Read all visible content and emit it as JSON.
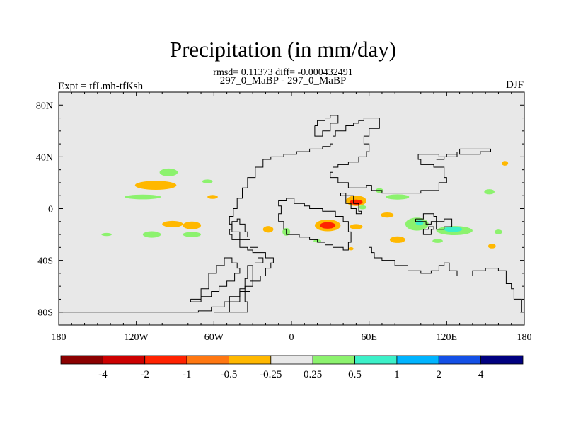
{
  "chart_data": {
    "type": "contour-map",
    "title": "Precipitation (in mm/day)",
    "subtitle": "rmsd= 0.11373 diff= -0.000432491",
    "left_label": "Expt = tfLmh-tfKsh",
    "center_label": "297_0_MaBP - 297_0_MaBP",
    "season": "DJF",
    "lon_range": [
      -180,
      180
    ],
    "lat_range": [
      -90,
      90
    ],
    "x_ticks": [
      {
        "value": -180,
        "label": "180"
      },
      {
        "value": -120,
        "label": "120W"
      },
      {
        "value": -60,
        "label": "60W"
      },
      {
        "value": 0,
        "label": "0"
      },
      {
        "value": 60,
        "label": "60E"
      },
      {
        "value": 120,
        "label": "120E"
      },
      {
        "value": 180,
        "label": "180"
      }
    ],
    "y_ticks": [
      {
        "value": 80,
        "label": "80N"
      },
      {
        "value": 40,
        "label": "40N"
      },
      {
        "value": 0,
        "label": "0"
      },
      {
        "value": -40,
        "label": "40S"
      },
      {
        "value": -80,
        "label": "80S"
      }
    ],
    "background_color": "#e8e8e8",
    "colorbar": {
      "colors": [
        "#8b0000",
        "#cc0000",
        "#ff2200",
        "#ff7711",
        "#ffb800",
        "#e8e8e8",
        "#8cf26e",
        "#3cf0c8",
        "#00b4ff",
        "#1450e6",
        "#000080"
      ],
      "labels": [
        "-4",
        "-2",
        "-1",
        "-0.5",
        "-0.25",
        "0.25",
        "0.5",
        "1",
        "2",
        "4"
      ]
    },
    "anomaly_regions": [
      {
        "lon": -105,
        "lat": 18,
        "w": 16,
        "h": 3.5,
        "color": "#ffb800"
      },
      {
        "lon": -95,
        "lat": 28,
        "w": 7,
        "h": 3,
        "color": "#8cf26e"
      },
      {
        "lon": -115,
        "lat": 9,
        "w": 14,
        "h": 1.8,
        "color": "#8cf26e"
      },
      {
        "lon": -65,
        "lat": 21,
        "w": 4,
        "h": 1.5,
        "color": "#8cf26e"
      },
      {
        "lon": -61,
        "lat": 9,
        "w": 4,
        "h": 1.5,
        "color": "#ffb800"
      },
      {
        "lon": -108,
        "lat": -20,
        "w": 7,
        "h": 2.5,
        "color": "#8cf26e"
      },
      {
        "lon": -92,
        "lat": -12,
        "w": 8,
        "h": 2.5,
        "color": "#ffb800"
      },
      {
        "lon": -77,
        "lat": -13,
        "w": 7,
        "h": 3,
        "color": "#ffb800"
      },
      {
        "lon": -77,
        "lat": -20,
        "w": 7,
        "h": 2,
        "color": "#8cf26e"
      },
      {
        "lon": -143,
        "lat": -20,
        "w": 4,
        "h": 1.2,
        "color": "#8cf26e"
      },
      {
        "lon": -18,
        "lat": -16,
        "w": 4,
        "h": 2.5,
        "color": "#ffb800"
      },
      {
        "lon": -4,
        "lat": -18,
        "w": 3,
        "h": 3,
        "color": "#8cf26e"
      },
      {
        "lon": 28,
        "lat": -13,
        "w": 10,
        "h": 4.5,
        "color": "#ffb800"
      },
      {
        "lon": 28,
        "lat": -13,
        "w": 6,
        "h": 2.5,
        "color": "#ff2200"
      },
      {
        "lon": 50,
        "lat": 6,
        "w": 8,
        "h": 4,
        "color": "#ffb800"
      },
      {
        "lon": 50,
        "lat": 5,
        "w": 5,
        "h": 2,
        "color": "#ff2200"
      },
      {
        "lon": 50,
        "lat": -14,
        "w": 5,
        "h": 2,
        "color": "#ffb800"
      },
      {
        "lon": 55,
        "lat": 1,
        "w": 3,
        "h": 1.5,
        "color": "#8cf26e"
      },
      {
        "lon": 74,
        "lat": -5,
        "w": 5,
        "h": 2,
        "color": "#ffb800"
      },
      {
        "lon": 82,
        "lat": 9,
        "w": 9,
        "h": 2,
        "color": "#8cf26e"
      },
      {
        "lon": 97,
        "lat": -12,
        "w": 9,
        "h": 5,
        "color": "#8cf26e"
      },
      {
        "lon": 99,
        "lat": -11,
        "w": 3,
        "h": 2,
        "color": "#3cf0c8"
      },
      {
        "lon": 126,
        "lat": -17,
        "w": 14,
        "h": 3.5,
        "color": "#8cf26e"
      },
      {
        "lon": 125,
        "lat": -16,
        "w": 7,
        "h": 2,
        "color": "#3cf0c8"
      },
      {
        "lon": 82,
        "lat": -24,
        "w": 6,
        "h": 2.5,
        "color": "#ffb800"
      },
      {
        "lon": 113,
        "lat": -25,
        "w": 4,
        "h": 1.5,
        "color": "#8cf26e"
      },
      {
        "lon": 153,
        "lat": 13,
        "w": 4,
        "h": 2,
        "color": "#8cf26e"
      },
      {
        "lon": 160,
        "lat": -18,
        "w": 3,
        "h": 1.8,
        "color": "#8cf26e"
      },
      {
        "lon": 155,
        "lat": -29,
        "w": 3,
        "h": 1.8,
        "color": "#ffb800"
      },
      {
        "lon": 165,
        "lat": 35,
        "w": 2.5,
        "h": 1.8,
        "color": "#ffb800"
      },
      {
        "lon": 68,
        "lat": 14,
        "w": 3,
        "h": 1.8,
        "color": "#8cf26e"
      },
      {
        "lon": 20,
        "lat": -25,
        "w": 3,
        "h": 1.2,
        "color": "#8cf26e"
      },
      {
        "lon": 46,
        "lat": -31,
        "w": 2,
        "h": 1.2,
        "color": "#ffb800"
      }
    ],
    "coastlines": [
      [
        [
          -180,
          -80
        ],
        [
          -150,
          -80
        ],
        [
          -100,
          -80
        ],
        [
          -72,
          -79
        ],
        [
          -62,
          -76
        ],
        [
          -52,
          -72
        ],
        [
          -48,
          -68
        ],
        [
          -40,
          -64
        ],
        [
          -36,
          -60
        ],
        [
          -30,
          -56
        ],
        [
          -24,
          -52
        ],
        [
          -20,
          -46
        ],
        [
          -16,
          -42
        ],
        [
          -14,
          -38
        ],
        [
          -20,
          -34
        ],
        [
          -26,
          -30
        ],
        [
          -32,
          -24
        ],
        [
          -40,
          -18
        ],
        [
          -46,
          -12
        ],
        [
          -48,
          -6
        ],
        [
          -45,
          0
        ],
        [
          -42,
          8
        ],
        [
          -38,
          16
        ],
        [
          -34,
          24
        ],
        [
          -28,
          32
        ],
        [
          -22,
          38
        ],
        [
          -16,
          40
        ],
        [
          -6,
          42
        ],
        [
          4,
          44
        ],
        [
          14,
          46
        ],
        [
          24,
          48
        ],
        [
          30,
          50
        ],
        [
          32,
          56
        ],
        [
          34,
          60
        ],
        [
          42,
          64
        ],
        [
          48,
          66
        ],
        [
          52,
          68
        ],
        [
          56,
          70
        ],
        [
          60,
          70
        ],
        [
          68,
          70
        ],
        [
          68,
          62
        ],
        [
          60,
          56
        ],
        [
          56,
          50
        ],
        [
          60,
          44
        ],
        [
          58,
          40
        ],
        [
          52,
          36
        ],
        [
          44,
          34
        ],
        [
          36,
          32
        ],
        [
          32,
          28
        ],
        [
          30,
          24
        ],
        [
          36,
          20
        ],
        [
          44,
          16
        ],
        [
          52,
          16
        ],
        [
          58,
          18
        ],
        [
          62,
          14
        ],
        [
          70,
          12
        ],
        [
          80,
          12
        ],
        [
          90,
          12
        ],
        [
          100,
          14
        ],
        [
          108,
          14
        ],
        [
          114,
          20
        ],
        [
          120,
          24
        ],
        [
          118,
          32
        ],
        [
          110,
          34
        ],
        [
          100,
          38
        ],
        [
          98,
          42
        ],
        [
          108,
          42
        ],
        [
          114,
          40
        ],
        [
          120,
          42
        ],
        [
          128,
          44
        ],
        [
          128,
          40
        ],
        [
          118,
          38
        ],
        [
          112,
          38
        ]
      ],
      [
        [
          -28,
          -42
        ],
        [
          -24,
          -42
        ],
        [
          -22,
          -38
        ],
        [
          -26,
          -34
        ],
        [
          -30,
          -32
        ],
        [
          -34,
          -30
        ],
        [
          -40,
          -24
        ],
        [
          -46,
          -20
        ],
        [
          -48,
          -16
        ],
        [
          -46,
          -10
        ],
        [
          -42,
          -8
        ],
        [
          -40,
          -12
        ],
        [
          -36,
          -18
        ],
        [
          -34,
          -22
        ]
      ],
      [
        [
          -78,
          -70
        ],
        [
          -70,
          -62
        ],
        [
          -64,
          -50
        ],
        [
          -58,
          -44
        ],
        [
          -52,
          -38
        ],
        [
          -46,
          -42
        ],
        [
          -42,
          -46
        ],
        [
          -40,
          -50
        ],
        [
          -44,
          -56
        ],
        [
          -50,
          -60
        ],
        [
          -56,
          -64
        ],
        [
          -62,
          -68
        ],
        [
          -70,
          -72
        ],
        [
          -78,
          -70
        ]
      ],
      [
        [
          -60,
          -80
        ],
        [
          -48,
          -72
        ],
        [
          -40,
          -62
        ],
        [
          -36,
          -54
        ],
        [
          -34,
          -44
        ],
        [
          -32,
          -44
        ],
        [
          -30,
          -48
        ],
        [
          -30,
          -56
        ],
        [
          -32,
          -64
        ],
        [
          -36,
          -72
        ],
        [
          -34,
          -80
        ],
        [
          -60,
          -80
        ]
      ],
      [
        [
          -10,
          -10
        ],
        [
          -6,
          -16
        ],
        [
          -4,
          -20
        ],
        [
          6,
          -22
        ],
        [
          14,
          -24
        ],
        [
          20,
          -26
        ],
        [
          26,
          -28
        ],
        [
          32,
          -30
        ],
        [
          40,
          -32
        ],
        [
          44,
          -26
        ],
        [
          46,
          -18
        ],
        [
          44,
          -10
        ],
        [
          40,
          -6
        ],
        [
          34,
          -2
        ],
        [
          24,
          0
        ],
        [
          14,
          2
        ],
        [
          10,
          4
        ],
        [
          2,
          8
        ],
        [
          -4,
          6
        ],
        [
          -10,
          2
        ],
        [
          -8,
          -4
        ],
        [
          -10,
          -10
        ]
      ],
      [
        [
          60,
          -30
        ],
        [
          62,
          -34
        ],
        [
          64,
          -38
        ],
        [
          70,
          -40
        ],
        [
          80,
          -44
        ],
        [
          90,
          -48
        ],
        [
          100,
          -50
        ],
        [
          108,
          -48
        ],
        [
          114,
          -44
        ],
        [
          118,
          -42
        ],
        [
          122,
          -48
        ],
        [
          128,
          -52
        ],
        [
          140,
          -48
        ],
        [
          150,
          -46
        ],
        [
          160,
          -48
        ],
        [
          166,
          -58
        ],
        [
          170,
          -62
        ],
        [
          172,
          -70
        ],
        [
          178,
          -80
        ],
        [
          180,
          -82
        ]
      ],
      [
        [
          96,
          -8
        ],
        [
          102,
          -4
        ],
        [
          106,
          -4
        ],
        [
          110,
          -6
        ],
        [
          112,
          -10
        ],
        [
          108,
          -12
        ],
        [
          104,
          -10
        ],
        [
          98,
          -10
        ],
        [
          96,
          -8
        ]
      ],
      [
        [
          112,
          -10
        ],
        [
          118,
          -8
        ],
        [
          122,
          -8
        ],
        [
          124,
          -14
        ],
        [
          118,
          -16
        ],
        [
          112,
          -14
        ],
        [
          112,
          -10
        ]
      ],
      [
        [
          102,
          -16
        ],
        [
          106,
          -14
        ],
        [
          110,
          -16
        ],
        [
          108,
          -20
        ],
        [
          104,
          -20
        ],
        [
          102,
          -16
        ]
      ],
      [
        [
          130,
          46
        ],
        [
          140,
          46
        ],
        [
          152,
          46
        ],
        [
          154,
          44
        ],
        [
          146,
          42
        ],
        [
          138,
          42
        ],
        [
          130,
          44
        ],
        [
          130,
          46
        ]
      ],
      [
        [
          18,
          64
        ],
        [
          20,
          68
        ],
        [
          26,
          70
        ],
        [
          30,
          72
        ],
        [
          36,
          70
        ],
        [
          36,
          66
        ],
        [
          30,
          60
        ],
        [
          24,
          56
        ],
        [
          18,
          58
        ],
        [
          18,
          64
        ]
      ],
      [
        [
          38,
          10
        ],
        [
          42,
          4
        ],
        [
          46,
          0
        ],
        [
          50,
          -4
        ],
        [
          54,
          -2
        ],
        [
          52,
          4
        ],
        [
          48,
          10
        ],
        [
          42,
          12
        ],
        [
          38,
          10
        ]
      ]
    ]
  }
}
